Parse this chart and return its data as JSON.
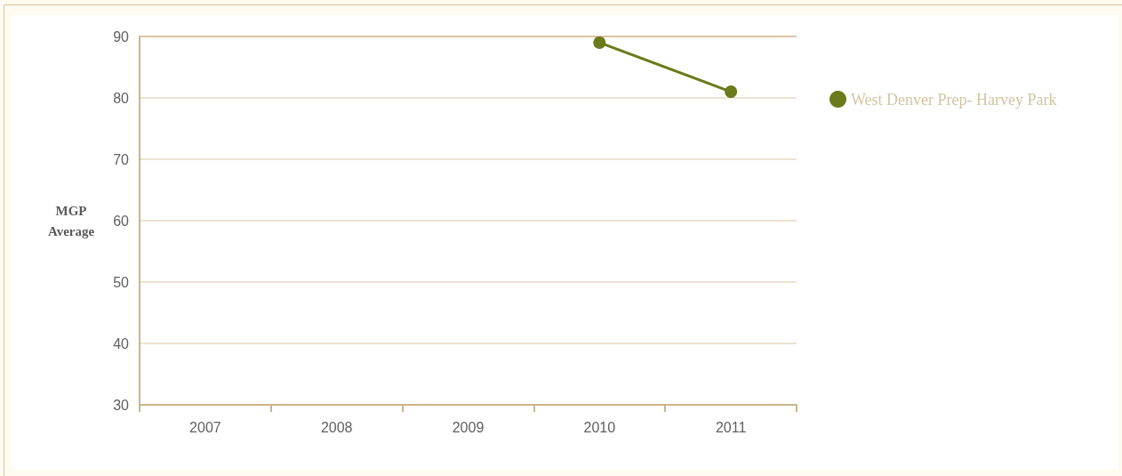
{
  "chart_data": {
    "type": "line",
    "ylabel": "MGP Average",
    "categories": [
      "2007",
      "2008",
      "2009",
      "2010",
      "2011"
    ],
    "series": [
      {
        "name": "West Denver Prep- Harvey Park",
        "color": "#6b7a1a",
        "values": [
          null,
          null,
          null,
          89,
          81
        ]
      }
    ],
    "ylim": [
      30,
      90
    ],
    "yticks": [
      30,
      40,
      50,
      60,
      70,
      80,
      90
    ],
    "grid": "y",
    "legend": "top right",
    "marker": "circle",
    "line_style": "solid"
  }
}
